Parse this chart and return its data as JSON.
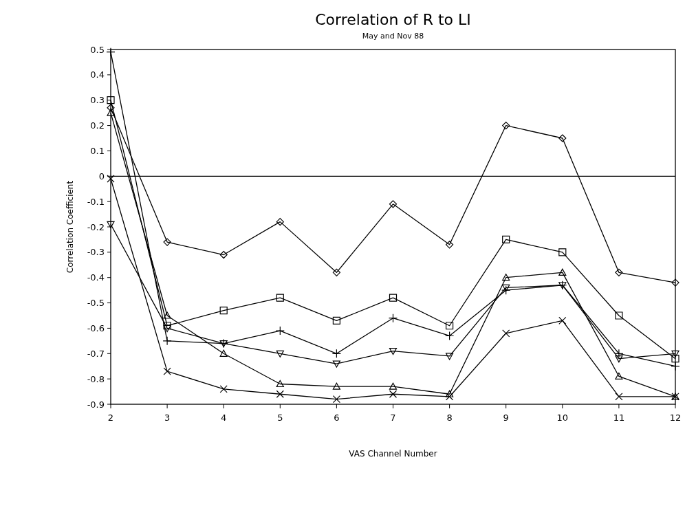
{
  "chart_data": {
    "type": "line",
    "title": "Correlation of R to LI",
    "subtitle": "May and Nov 88",
    "xlabel": "VAS Channel Number",
    "ylabel": "Correlation Coefficient",
    "x": [
      2,
      3,
      4,
      5,
      6,
      7,
      8,
      9,
      10,
      11,
      12
    ],
    "xlim": [
      2,
      12
    ],
    "xticks": [
      2,
      3,
      4,
      5,
      6,
      7,
      8,
      9,
      10,
      11,
      12
    ],
    "ylim": [
      -0.9,
      0.5
    ],
    "yticks": [
      {
        "value": -0.9,
        "label": "-0.9"
      },
      {
        "value": -0.8,
        "label": "-0.8"
      },
      {
        "value": -0.7,
        "label": "-0.7"
      },
      {
        "value": -0.6,
        "label": "-0.6"
      },
      {
        "value": -0.5,
        "label": "-0.5"
      },
      {
        "value": -0.4,
        "label": "-0.4"
      },
      {
        "value": -0.3,
        "label": "-0.3"
      },
      {
        "value": -0.2,
        "label": "-0.2"
      },
      {
        "value": -0.1,
        "label": "-0.1"
      },
      {
        "value": 0,
        "label": "0"
      },
      {
        "value": 0.1,
        "label": "0.1"
      },
      {
        "value": 0.2,
        "label": "0.2"
      },
      {
        "value": 0.3,
        "label": "0.3"
      },
      {
        "value": 0.4,
        "label": "0.4"
      },
      {
        "value": 0.5,
        "label": "0.5"
      }
    ],
    "grid": false,
    "line_style": "solid",
    "ref_lines": [
      {
        "axis": "y",
        "value": 0,
        "color": "#000000"
      }
    ],
    "series": [
      {
        "color": "#000000",
        "marker": "diamond",
        "values": [
          0.27,
          -0.26,
          -0.31,
          -0.18,
          -0.38,
          -0.11,
          -0.27,
          0.2,
          0.15,
          -0.38,
          -0.42
        ]
      },
      {
        "color": "#000000",
        "marker": "square",
        "values": [
          0.3,
          -0.59,
          -0.53,
          -0.48,
          -0.57,
          -0.48,
          -0.59,
          -0.25,
          -0.3,
          -0.55,
          -0.72
        ]
      },
      {
        "color": "#000000",
        "marker": "plus",
        "values": [
          0.49,
          -0.65,
          -0.66,
          -0.61,
          -0.7,
          -0.56,
          -0.63,
          -0.45,
          -0.43,
          -0.7,
          -0.75
        ]
      },
      {
        "color": "#000000",
        "marker": "triangle-down",
        "values": [
          -0.19,
          -0.6,
          -0.66,
          -0.7,
          -0.74,
          -0.69,
          -0.71,
          -0.44,
          -0.43,
          -0.72,
          -0.7
        ]
      },
      {
        "color": "#000000",
        "marker": "triangle",
        "values": [
          0.25,
          -0.55,
          -0.7,
          -0.82,
          -0.83,
          -0.83,
          -0.86,
          -0.4,
          -0.38,
          -0.79,
          -0.87
        ]
      },
      {
        "color": "#000000",
        "marker": "cross",
        "values": [
          -0.01,
          -0.77,
          -0.84,
          -0.86,
          -0.88,
          -0.86,
          -0.87,
          -0.62,
          -0.57,
          -0.87,
          -0.87
        ]
      }
    ]
  }
}
